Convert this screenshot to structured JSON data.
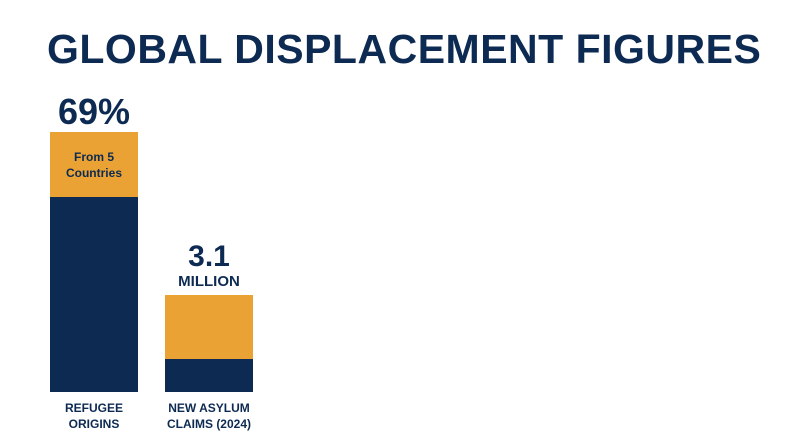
{
  "header": {
    "title": "GLOBAL DISPLACEMENT FIGURES"
  },
  "colors": {
    "navy": "#0d2a52",
    "amber": "#e9a233"
  },
  "chart_data": {
    "type": "bar",
    "stacked": true,
    "title": "GLOBAL DISPLACEMENT FIGURES",
    "categories": [
      "REFUGEE\nORIGINS",
      "NEW ASYLUM\nCLAIMS (2024)"
    ],
    "bars": [
      {
        "value_label": "69%",
        "unit_label": "",
        "top_segment_label": "From 5\nCountries",
        "top_fraction": 0.25
      },
      {
        "value_label": "3.1",
        "unit_label": "MILLION",
        "top_segment_label": "",
        "top_fraction": 0.66
      }
    ]
  }
}
